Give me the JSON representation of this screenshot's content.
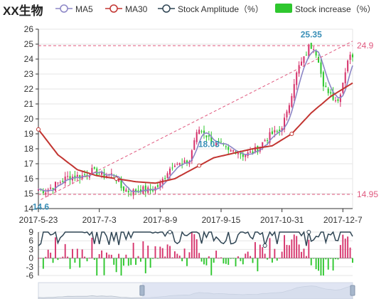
{
  "title": "XX生物",
  "legend": [
    {
      "label": "MA5",
      "color": "#8c86c6",
      "icon": "line-circle-icon"
    },
    {
      "label": "MA30",
      "color": "#c23531",
      "icon": "line-circle-icon"
    },
    {
      "label": "Stock Amplitude（%）",
      "color": "#2f4554",
      "icon": "line-circle-icon"
    },
    {
      "label": "Stock increase（%）",
      "color": "#2ec72e",
      "icon": "bar-rect-icon"
    }
  ],
  "colors": {
    "up": "#d6336c",
    "down": "#2ec72e",
    "ma5": "#8c86c6",
    "ma30": "#c23531",
    "amplitude": "#2f4554",
    "markline": "#e0597f",
    "grid": "#e6e6e6",
    "axis": "#333333",
    "dataZoomBg": "#d2dbee"
  },
  "chart_data": [
    {
      "type": "candlestick",
      "x_axis_labels": [
        "2017-5-23",
        "2017-7-3",
        "2017-8-9",
        "2017-9-15",
        "2017-10-31",
        "2017-12-7"
      ],
      "ylim": [
        14,
        26
      ],
      "y_ticks": [
        14,
        15,
        16,
        17,
        18,
        19,
        20,
        21,
        22,
        23,
        24,
        25,
        26
      ],
      "close_path": [
        {
          "i": 0,
          "v": 15.3
        },
        {
          "i": 3,
          "v": 15.2
        },
        {
          "i": 7,
          "v": 15.6
        },
        {
          "i": 12,
          "v": 16.1
        },
        {
          "i": 18,
          "v": 16.2
        },
        {
          "i": 22,
          "v": 16.5
        },
        {
          "i": 27,
          "v": 16.2
        },
        {
          "i": 31,
          "v": 16.3
        },
        {
          "i": 34,
          "v": 15.4
        },
        {
          "i": 38,
          "v": 15.1
        },
        {
          "i": 42,
          "v": 15.3
        },
        {
          "i": 46,
          "v": 15.2
        },
        {
          "i": 50,
          "v": 15.6
        },
        {
          "i": 53,
          "v": 16.5
        },
        {
          "i": 56,
          "v": 17.1
        },
        {
          "i": 59,
          "v": 16.9
        },
        {
          "i": 62,
          "v": 17.2
        },
        {
          "i": 64,
          "v": 18.6
        },
        {
          "i": 66,
          "v": 19.3
        },
        {
          "i": 68,
          "v": 19.1
        },
        {
          "i": 70,
          "v": 18.7
        },
        {
          "i": 72,
          "v": 18.3
        },
        {
          "i": 75,
          "v": 18.2
        },
        {
          "i": 78,
          "v": 17.8
        },
        {
          "i": 81,
          "v": 17.9
        },
        {
          "i": 84,
          "v": 17.6
        },
        {
          "i": 87,
          "v": 17.7
        },
        {
          "i": 90,
          "v": 18.0
        },
        {
          "i": 93,
          "v": 18.6
        },
        {
          "i": 96,
          "v": 19.0
        },
        {
          "i": 99,
          "v": 19.2
        },
        {
          "i": 102,
          "v": 20.3
        },
        {
          "i": 105,
          "v": 22.5
        },
        {
          "i": 107,
          "v": 23.5
        },
        {
          "i": 109,
          "v": 24.0
        },
        {
          "i": 111,
          "v": 24.8
        },
        {
          "i": 113,
          "v": 24.9
        },
        {
          "i": 115,
          "v": 24.0
        },
        {
          "i": 117,
          "v": 22.0
        },
        {
          "i": 119,
          "v": 21.9
        },
        {
          "i": 121,
          "v": 21.5
        },
        {
          "i": 123,
          "v": 21.2
        },
        {
          "i": 125,
          "v": 22.5
        },
        {
          "i": 127,
          "v": 24.0
        },
        {
          "i": 129,
          "v": 24.3
        }
      ],
      "candle_count": 130,
      "ma5_label": "MA5",
      "ma30_path": [
        {
          "i": 0,
          "v": 19.3
        },
        {
          "i": 8,
          "v": 17.6
        },
        {
          "i": 16,
          "v": 16.6
        },
        {
          "i": 24,
          "v": 16.2
        },
        {
          "i": 32,
          "v": 16.0
        },
        {
          "i": 40,
          "v": 15.8
        },
        {
          "i": 48,
          "v": 15.7
        },
        {
          "i": 56,
          "v": 16.0
        },
        {
          "i": 64,
          "v": 16.7
        },
        {
          "i": 72,
          "v": 17.4
        },
        {
          "i": 80,
          "v": 17.7
        },
        {
          "i": 88,
          "v": 18.0
        },
        {
          "i": 96,
          "v": 18.2
        },
        {
          "i": 104,
          "v": 19.0
        },
        {
          "i": 112,
          "v": 20.4
        },
        {
          "i": 120,
          "v": 21.5
        },
        {
          "i": 129,
          "v": 22.4
        }
      ],
      "mark_lines": [
        {
          "label": "24.9",
          "value": 24.9
        },
        {
          "label": "14.95",
          "value": 14.95
        }
      ],
      "mark_points": [
        {
          "label": "25.35",
          "i": 112,
          "v": 25.35
        },
        {
          "label": "18.03",
          "i": 70,
          "v": 18.03
        },
        {
          "label": "14.6",
          "i": 1,
          "v": 14.6
        }
      ]
    },
    {
      "type": "bar+line",
      "ylim": [
        -6,
        9
      ],
      "y_ticks": [
        -6,
        -3,
        0,
        3,
        6,
        9
      ],
      "y_tick_labels": [
        "-6",
        "-3",
        "0",
        "3",
        "6",
        "9"
      ],
      "series": [
        {
          "name": "Stock Amplitude（%）",
          "kind": "line"
        },
        {
          "name": "Stock increase（%）",
          "kind": "bar"
        }
      ]
    }
  ],
  "dataZoom": {
    "start_fraction": 0.33,
    "end_fraction": 1.0
  }
}
